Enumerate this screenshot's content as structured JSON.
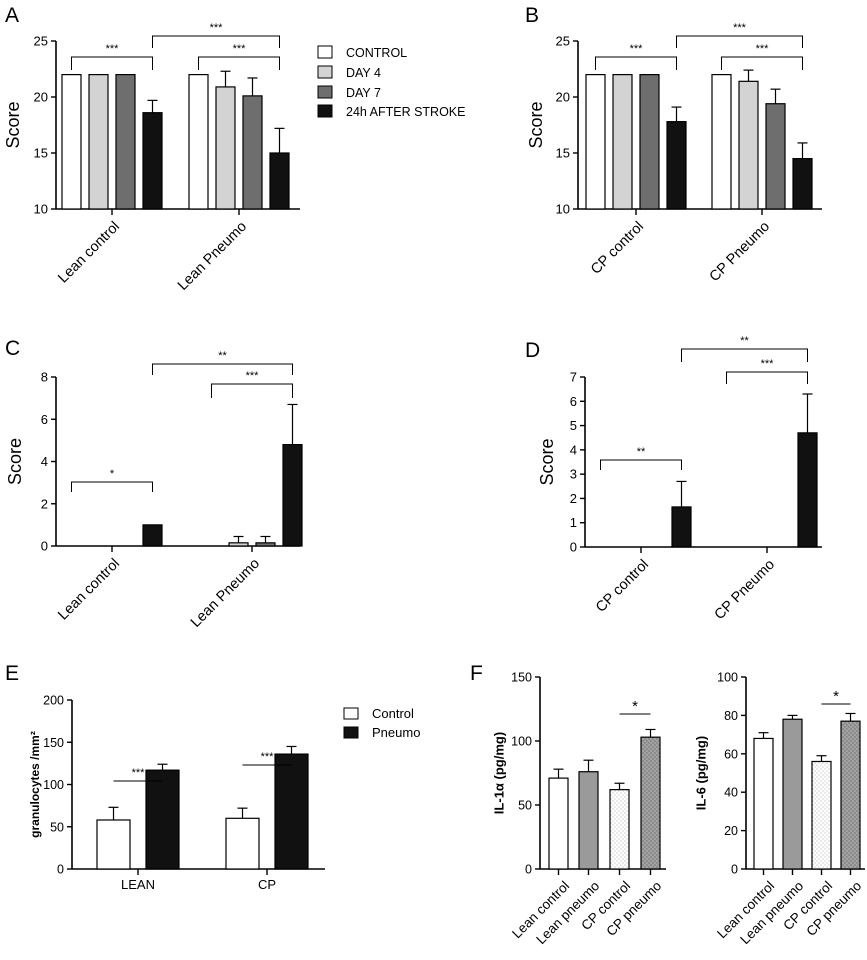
{
  "figure": {
    "panel_letters": [
      "A",
      "B",
      "C",
      "D",
      "E",
      "F"
    ],
    "legend_top": {
      "entries": [
        {
          "label": "CONTROL",
          "color": "#ffffff"
        },
        {
          "label": "DAY 4",
          "color": "#d3d3d3"
        },
        {
          "label": "DAY 7",
          "color": "#6e6e6e"
        },
        {
          "label": "24h AFTER STROKE",
          "color": "#111111"
        }
      ],
      "placement": "right of panel A"
    },
    "legend_e": {
      "entries": [
        {
          "label": "Control",
          "color": "#ffffff"
        },
        {
          "label": "Pneumo",
          "color": "#111111"
        }
      ],
      "placement": "top-right"
    }
  },
  "chart_data": [
    {
      "id": "A",
      "type": "bar",
      "title": "",
      "ylabel": "Score",
      "xlabel": "",
      "ylim": [
        10,
        25
      ],
      "yticks": [
        "10",
        "15",
        "20",
        "25"
      ],
      "categories": [
        "Lean control",
        "Lean Pneumo"
      ],
      "series": [
        {
          "name": "CONTROL",
          "color": "#ffffff",
          "values": [
            22,
            22
          ],
          "errors": [
            0,
            0
          ]
        },
        {
          "name": "DAY 4",
          "color": "#d3d3d3",
          "values": [
            22,
            20.9
          ],
          "errors": [
            0,
            1.4
          ]
        },
        {
          "name": "DAY 7",
          "color": "#6e6e6e",
          "values": [
            22,
            20.1
          ],
          "errors": [
            0,
            1.6
          ]
        },
        {
          "name": "24h AFTER STROKE",
          "color": "#111111",
          "values": [
            18.6,
            15
          ],
          "errors": [
            1.1,
            2.2
          ]
        }
      ],
      "annotations": [
        {
          "label": "***",
          "from": [
            0,
            0
          ],
          "to": [
            0,
            3
          ]
        },
        {
          "label": "***",
          "from": [
            1,
            0
          ],
          "to": [
            1,
            3
          ]
        },
        {
          "label": "***",
          "from": [
            0,
            3
          ],
          "to": [
            1,
            3
          ]
        }
      ]
    },
    {
      "id": "B",
      "type": "bar",
      "title": "",
      "ylabel": "Score",
      "xlabel": "",
      "ylim": [
        10,
        25
      ],
      "yticks": [
        "10",
        "15",
        "20",
        "25"
      ],
      "categories": [
        "CP control",
        "CP Pneumo"
      ],
      "series": [
        {
          "name": "CONTROL",
          "color": "#ffffff",
          "values": [
            22,
            22
          ],
          "errors": [
            0,
            0
          ]
        },
        {
          "name": "DAY 4",
          "color": "#d3d3d3",
          "values": [
            22,
            21.4
          ],
          "errors": [
            0,
            1.0
          ]
        },
        {
          "name": "DAY 7",
          "color": "#6e6e6e",
          "values": [
            22,
            19.4
          ],
          "errors": [
            0,
            1.3
          ]
        },
        {
          "name": "24h AFTER STROKE",
          "color": "#111111",
          "values": [
            17.8,
            14.5
          ],
          "errors": [
            1.3,
            1.4
          ]
        }
      ],
      "annotations": [
        {
          "label": "***",
          "from": [
            0,
            0
          ],
          "to": [
            0,
            3
          ]
        },
        {
          "label": "***",
          "from": [
            1,
            0
          ],
          "to": [
            1,
            3
          ]
        },
        {
          "label": "***",
          "from": [
            0,
            3
          ],
          "to": [
            1,
            3
          ]
        }
      ]
    },
    {
      "id": "C",
      "type": "bar",
      "title": "",
      "ylabel": "Score",
      "xlabel": "",
      "ylim": [
        0,
        8
      ],
      "yticks": [
        "0",
        "2",
        "4",
        "6",
        "8"
      ],
      "categories": [
        "Lean control",
        "Lean Pneumo"
      ],
      "series": [
        {
          "name": "CONTROL",
          "color": "#ffffff",
          "values": [
            0,
            0
          ],
          "errors": [
            0,
            0
          ]
        },
        {
          "name": "DAY 4",
          "color": "#d3d3d3",
          "values": [
            0,
            0.15
          ],
          "errors": [
            0,
            0.3
          ]
        },
        {
          "name": "DAY 7",
          "color": "#6e6e6e",
          "values": [
            0,
            0.15
          ],
          "errors": [
            0,
            0.3
          ]
        },
        {
          "name": "24h AFTER STROKE",
          "color": "#111111",
          "values": [
            1,
            4.8
          ],
          "errors": [
            0,
            1.9
          ]
        }
      ],
      "annotations": [
        {
          "label": "*",
          "from": [
            0,
            0
          ],
          "to": [
            0,
            3
          ]
        },
        {
          "label": "***",
          "from": [
            1,
            0
          ],
          "to": [
            1,
            3
          ]
        },
        {
          "label": "**",
          "from": [
            0,
            3
          ],
          "to": [
            1,
            3
          ]
        }
      ]
    },
    {
      "id": "D",
      "type": "bar",
      "title": "",
      "ylabel": "Score",
      "xlabel": "",
      "ylim": [
        0,
        7
      ],
      "yticks": [
        "0",
        "1",
        "2",
        "3",
        "4",
        "5",
        "6",
        "7"
      ],
      "categories": [
        "CP control",
        "CP Pneumo"
      ],
      "series": [
        {
          "name": "CONTROL",
          "color": "#ffffff",
          "values": [
            0,
            0
          ],
          "errors": [
            0,
            0
          ]
        },
        {
          "name": "DAY 4",
          "color": "#d3d3d3",
          "values": [
            0,
            0
          ],
          "errors": [
            0,
            0
          ]
        },
        {
          "name": "DAY 7",
          "color": "#6e6e6e",
          "values": [
            0,
            0
          ],
          "errors": [
            0,
            0
          ]
        },
        {
          "name": "24h AFTER STROKE",
          "color": "#111111",
          "values": [
            1.65,
            4.7
          ],
          "errors": [
            1.05,
            1.6
          ]
        }
      ],
      "annotations": [
        {
          "label": "**",
          "from": [
            0,
            0
          ],
          "to": [
            0,
            3
          ]
        },
        {
          "label": "***",
          "from": [
            1,
            0
          ],
          "to": [
            1,
            3
          ]
        },
        {
          "label": "**",
          "from": [
            0,
            3
          ],
          "to": [
            1,
            3
          ]
        }
      ]
    },
    {
      "id": "E",
      "type": "bar",
      "title": "",
      "ylabel": "granulocytes /mm²",
      "xlabel": "",
      "ylim": [
        0,
        200
      ],
      "yticks": [
        "0",
        "50",
        "100",
        "150",
        "200"
      ],
      "categories": [
        "LEAN",
        "CP"
      ],
      "series": [
        {
          "name": "Control",
          "color": "#ffffff",
          "values": [
            58,
            60
          ],
          "errors": [
            15,
            12
          ]
        },
        {
          "name": "Pneumo",
          "color": "#111111",
          "values": [
            117,
            136
          ],
          "errors": [
            7,
            9
          ]
        }
      ],
      "annotations": [
        {
          "label": "***",
          "from": [
            0,
            0
          ],
          "to": [
            0,
            1
          ]
        },
        {
          "label": "***",
          "from": [
            1,
            0
          ],
          "to": [
            1,
            1
          ]
        }
      ]
    },
    {
      "id": "F1",
      "type": "bar",
      "title": "",
      "ylabel": "IL-1α (pg/mg)",
      "xlabel": "",
      "ylim": [
        0,
        150
      ],
      "yticks": [
        "0",
        "50",
        "100",
        "150"
      ],
      "categories": [
        "Lean control",
        "Lean pneumo",
        "CP control",
        "CP pneumo"
      ],
      "values": [
        71,
        76,
        62,
        103
      ],
      "errors": [
        7,
        9,
        5,
        6
      ],
      "annotations": [
        {
          "label": "*",
          "from": 2,
          "to": 3
        }
      ]
    },
    {
      "id": "F2",
      "type": "bar",
      "title": "",
      "ylabel": "IL-6 (pg/mg)",
      "xlabel": "",
      "ylim": [
        0,
        100
      ],
      "yticks": [
        "0",
        "20",
        "40",
        "60",
        "80",
        "100"
      ],
      "categories": [
        "Lean control",
        "Lean pneumo",
        "CP control",
        "CP pneumo"
      ],
      "values": [
        68,
        78,
        56,
        77
      ],
      "errors": [
        3,
        2,
        3,
        4
      ],
      "annotations": [
        {
          "label": "*",
          "from": 2,
          "to": 3
        }
      ]
    }
  ]
}
